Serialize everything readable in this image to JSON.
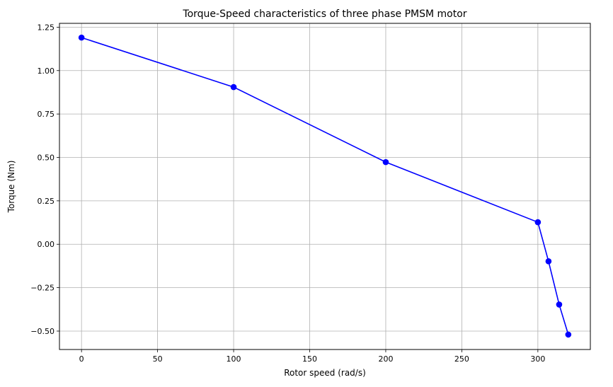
{
  "chart_data": {
    "type": "line",
    "title": "Torque-Speed characteristics of three phase PMSM motor",
    "xlabel": "Rotor speed (rad/s)",
    "ylabel": "Torque (Nm)",
    "x": [
      0,
      100,
      200,
      300,
      307,
      314,
      320
    ],
    "series": [
      {
        "values": [
          1.19,
          0.905,
          0.473,
          0.127,
          -0.098,
          -0.347,
          -0.52
        ]
      }
    ],
    "xlim": [
      -14.5,
      334.5
    ],
    "ylim": [
      -0.606,
      1.272
    ],
    "xticks": [
      0,
      50,
      100,
      150,
      200,
      250,
      300
    ],
    "xtick_labels": [
      "0",
      "50",
      "100",
      "150",
      "200",
      "250",
      "300"
    ],
    "yticks": [
      1.25,
      1.0,
      0.75,
      0.5,
      0.25,
      0.0,
      -0.25,
      -0.5
    ],
    "ytick_labels": [
      "1.25",
      "1.00",
      "0.75",
      "0.50",
      "0.25",
      "0.00",
      "−0.25",
      "−0.50"
    ],
    "grid": true,
    "line_color": "#0000ff",
    "marker": "circle"
  }
}
